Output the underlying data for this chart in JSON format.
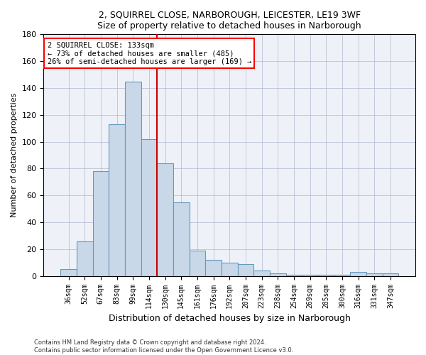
{
  "title1": "2, SQUIRREL CLOSE, NARBOROUGH, LEICESTER, LE19 3WF",
  "title2": "Size of property relative to detached houses in Narborough",
  "xlabel": "Distribution of detached houses by size in Narborough",
  "ylabel": "Number of detached properties",
  "categories": [
    "36sqm",
    "52sqm",
    "67sqm",
    "83sqm",
    "99sqm",
    "114sqm",
    "130sqm",
    "145sqm",
    "161sqm",
    "176sqm",
    "192sqm",
    "207sqm",
    "223sqm",
    "238sqm",
    "254sqm",
    "269sqm",
    "285sqm",
    "300sqm",
    "316sqm",
    "331sqm",
    "347sqm"
  ],
  "values": [
    5,
    26,
    78,
    113,
    145,
    102,
    84,
    55,
    19,
    12,
    10,
    9,
    4,
    2,
    1,
    1,
    1,
    1,
    3,
    2,
    2
  ],
  "bar_color": "#c8d8e8",
  "bar_edge_color": "#6699bb",
  "vline_x": 5.5,
  "annotation_text_line1": "2 SQUIRREL CLOSE: 133sqm",
  "annotation_text_line2": "← 73% of detached houses are smaller (485)",
  "annotation_text_line3": "26% of semi-detached houses are larger (169) →",
  "annotation_box_color": "white",
  "annotation_box_edge_color": "red",
  "vline_color": "#cc0000",
  "grid_color": "#b0b8cc",
  "bg_color": "#eef2f8",
  "footer1": "Contains HM Land Registry data © Crown copyright and database right 2024.",
  "footer2": "Contains public sector information licensed under the Open Government Licence v3.0.",
  "ylim": [
    0,
    180
  ],
  "yticks": [
    0,
    20,
    40,
    60,
    80,
    100,
    120,
    140,
    160,
    180
  ]
}
